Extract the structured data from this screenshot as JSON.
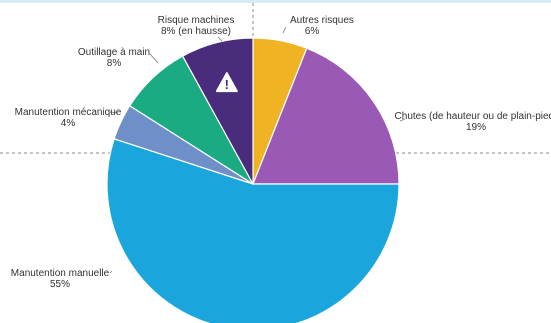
{
  "chart_data": {
    "type": "pie",
    "title": "",
    "slices": [
      {
        "name": "Autres risques",
        "value": 6,
        "label": "6%",
        "color": "#f0b323"
      },
      {
        "name": "Chutes (de hauteur ou de plain-pied)",
        "value": 19,
        "label": "19%",
        "color": "#9b59b6"
      },
      {
        "name": "Manutention manuelle",
        "value": 55,
        "label": "55%",
        "color": "#1aa6dc"
      },
      {
        "name": "Manutention mécanique",
        "value": 4,
        "label": "4%",
        "color": "#6f8fc9"
      },
      {
        "name": "Outillage à main",
        "value": 8,
        "label": "8%",
        "color": "#1bab83"
      },
      {
        "name": "Risque machines",
        "value": 8,
        "label": "8% (en hausse)",
        "color": "#4a2c7d",
        "icon": "warning-icon",
        "icon_glyph": "!"
      }
    ],
    "legend": "none",
    "start": "12 o'clock",
    "direction": "clockwise"
  }
}
